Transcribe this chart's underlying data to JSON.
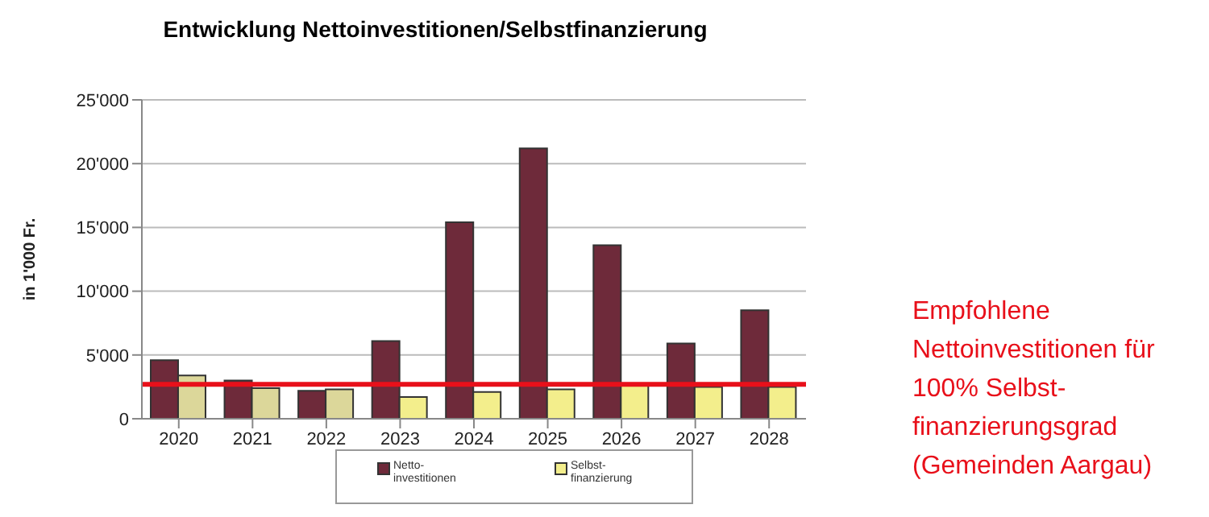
{
  "chart_data": {
    "type": "bar",
    "title": "Entwicklung Nettoinvestitionen/Selbstfinanzierung",
    "ylabel": "in 1'000 Fr.",
    "categories": [
      "2020",
      "2021",
      "2022",
      "2023",
      "2024",
      "2025",
      "2026",
      "2027",
      "2028"
    ],
    "series": [
      {
        "name": "Netto-investitionen",
        "color": "#6e2a3a",
        "values": [
          4600,
          3000,
          2200,
          6100,
          15400,
          21200,
          13600,
          5900,
          8500
        ]
      },
      {
        "name": "Selbst-finanzierung",
        "color": "#f3ee8c",
        "colors": [
          "#dcd79a",
          "#dcd79a",
          "#dcd79a",
          "#f3ee8c",
          "#f3ee8c",
          "#f3ee8c",
          "#f3ee8c",
          "#f3ee8c",
          "#f3ee8c"
        ],
        "values": [
          3400,
          2400,
          2300,
          1700,
          2100,
          2300,
          2600,
          2500,
          2500
        ]
      }
    ],
    "ylim": [
      0,
      25000
    ],
    "yticks": [
      {
        "value": 0,
        "label": "0"
      },
      {
        "value": 5000,
        "label": "5'000"
      },
      {
        "value": 10000,
        "label": "10'000"
      },
      {
        "value": 15000,
        "label": "15'000"
      },
      {
        "value": 20000,
        "label": "20'000"
      },
      {
        "value": 25000,
        "label": "25'000"
      }
    ],
    "grid": "y",
    "legend": "bottom",
    "ref_lines": [
      {
        "axis": "y",
        "value": 2700,
        "color": "#e8101a",
        "label": "Empfohlene Nettoinvestitionen für 100% Selbst-finanzierungsgrad (Gemeinden Aargau)"
      }
    ]
  }
}
